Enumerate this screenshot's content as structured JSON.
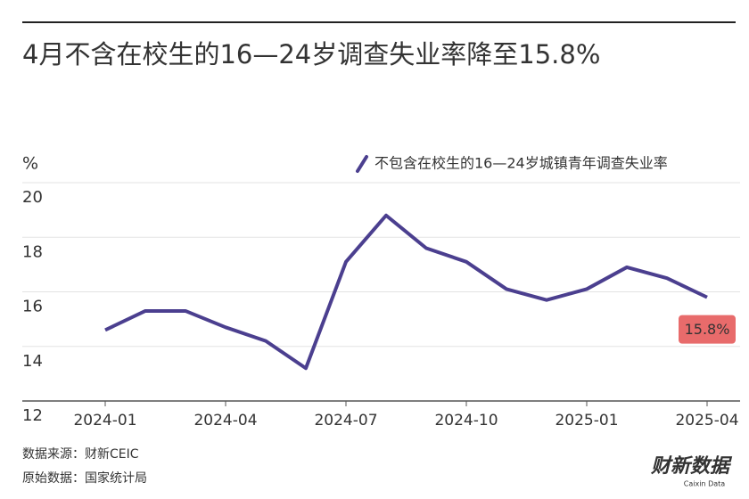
{
  "chart_data": {
    "type": "line",
    "title": "4月不含在校生的16—24岁调查失业率降至15.8%",
    "y_label": "%",
    "categories": [
      "2024-01",
      null,
      null,
      "2024-04",
      null,
      null,
      "2024-07",
      null,
      null,
      "2024-10",
      null,
      null,
      "2025-01",
      null,
      null,
      "2025-04"
    ],
    "series": [
      {
        "name": "不包含在校生的16—24岁城镇青年调查失业率",
        "color": "#4b3f8f",
        "values": [
          14.6,
          15.3,
          15.3,
          14.7,
          14.2,
          13.2,
          17.1,
          18.8,
          17.6,
          17.1,
          16.1,
          15.7,
          16.1,
          16.9,
          16.5,
          15.8
        ],
        "value_labels": [
          null,
          null,
          null,
          null,
          null,
          null,
          null,
          null,
          null,
          null,
          null,
          null,
          null,
          null,
          null,
          "15.8%"
        ]
      }
    ],
    "ylim": [
      12,
      20
    ],
    "yticks": [
      12,
      14,
      16,
      18,
      20
    ],
    "grid": true,
    "legend": "top-right",
    "sources": [
      "数据来源：财新CEIC",
      "原始数据：国家统计局"
    ],
    "logo": "财新数据",
    "logo_sub": "Caixin Data"
  }
}
